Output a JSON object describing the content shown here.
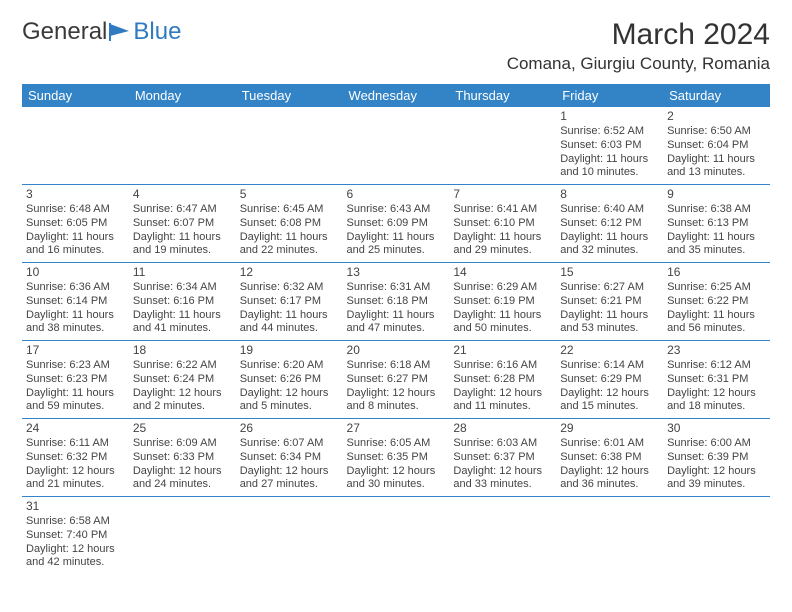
{
  "logo": {
    "text1": "General",
    "text2": "Blue"
  },
  "title": "March 2024",
  "location": "Comana, Giurgiu County, Romania",
  "colors": {
    "header_bg": "#3383c7",
    "header_text": "#ffffff",
    "cell_border": "#3383c7",
    "logo_blue": "#2f7ac0",
    "text": "#333333"
  },
  "day_headers": [
    "Sunday",
    "Monday",
    "Tuesday",
    "Wednesday",
    "Thursday",
    "Friday",
    "Saturday"
  ],
  "weeks": [
    [
      null,
      null,
      null,
      null,
      null,
      {
        "n": "1",
        "sr": "Sunrise: 6:52 AM",
        "ss": "Sunset: 6:03 PM",
        "d1": "Daylight: 11 hours",
        "d2": "and 10 minutes."
      },
      {
        "n": "2",
        "sr": "Sunrise: 6:50 AM",
        "ss": "Sunset: 6:04 PM",
        "d1": "Daylight: 11 hours",
        "d2": "and 13 minutes."
      }
    ],
    [
      {
        "n": "3",
        "sr": "Sunrise: 6:48 AM",
        "ss": "Sunset: 6:05 PM",
        "d1": "Daylight: 11 hours",
        "d2": "and 16 minutes."
      },
      {
        "n": "4",
        "sr": "Sunrise: 6:47 AM",
        "ss": "Sunset: 6:07 PM",
        "d1": "Daylight: 11 hours",
        "d2": "and 19 minutes."
      },
      {
        "n": "5",
        "sr": "Sunrise: 6:45 AM",
        "ss": "Sunset: 6:08 PM",
        "d1": "Daylight: 11 hours",
        "d2": "and 22 minutes."
      },
      {
        "n": "6",
        "sr": "Sunrise: 6:43 AM",
        "ss": "Sunset: 6:09 PM",
        "d1": "Daylight: 11 hours",
        "d2": "and 25 minutes."
      },
      {
        "n": "7",
        "sr": "Sunrise: 6:41 AM",
        "ss": "Sunset: 6:10 PM",
        "d1": "Daylight: 11 hours",
        "d2": "and 29 minutes."
      },
      {
        "n": "8",
        "sr": "Sunrise: 6:40 AM",
        "ss": "Sunset: 6:12 PM",
        "d1": "Daylight: 11 hours",
        "d2": "and 32 minutes."
      },
      {
        "n": "9",
        "sr": "Sunrise: 6:38 AM",
        "ss": "Sunset: 6:13 PM",
        "d1": "Daylight: 11 hours",
        "d2": "and 35 minutes."
      }
    ],
    [
      {
        "n": "10",
        "sr": "Sunrise: 6:36 AM",
        "ss": "Sunset: 6:14 PM",
        "d1": "Daylight: 11 hours",
        "d2": "and 38 minutes."
      },
      {
        "n": "11",
        "sr": "Sunrise: 6:34 AM",
        "ss": "Sunset: 6:16 PM",
        "d1": "Daylight: 11 hours",
        "d2": "and 41 minutes."
      },
      {
        "n": "12",
        "sr": "Sunrise: 6:32 AM",
        "ss": "Sunset: 6:17 PM",
        "d1": "Daylight: 11 hours",
        "d2": "and 44 minutes."
      },
      {
        "n": "13",
        "sr": "Sunrise: 6:31 AM",
        "ss": "Sunset: 6:18 PM",
        "d1": "Daylight: 11 hours",
        "d2": "and 47 minutes."
      },
      {
        "n": "14",
        "sr": "Sunrise: 6:29 AM",
        "ss": "Sunset: 6:19 PM",
        "d1": "Daylight: 11 hours",
        "d2": "and 50 minutes."
      },
      {
        "n": "15",
        "sr": "Sunrise: 6:27 AM",
        "ss": "Sunset: 6:21 PM",
        "d1": "Daylight: 11 hours",
        "d2": "and 53 minutes."
      },
      {
        "n": "16",
        "sr": "Sunrise: 6:25 AM",
        "ss": "Sunset: 6:22 PM",
        "d1": "Daylight: 11 hours",
        "d2": "and 56 minutes."
      }
    ],
    [
      {
        "n": "17",
        "sr": "Sunrise: 6:23 AM",
        "ss": "Sunset: 6:23 PM",
        "d1": "Daylight: 11 hours",
        "d2": "and 59 minutes."
      },
      {
        "n": "18",
        "sr": "Sunrise: 6:22 AM",
        "ss": "Sunset: 6:24 PM",
        "d1": "Daylight: 12 hours",
        "d2": "and 2 minutes."
      },
      {
        "n": "19",
        "sr": "Sunrise: 6:20 AM",
        "ss": "Sunset: 6:26 PM",
        "d1": "Daylight: 12 hours",
        "d2": "and 5 minutes."
      },
      {
        "n": "20",
        "sr": "Sunrise: 6:18 AM",
        "ss": "Sunset: 6:27 PM",
        "d1": "Daylight: 12 hours",
        "d2": "and 8 minutes."
      },
      {
        "n": "21",
        "sr": "Sunrise: 6:16 AM",
        "ss": "Sunset: 6:28 PM",
        "d1": "Daylight: 12 hours",
        "d2": "and 11 minutes."
      },
      {
        "n": "22",
        "sr": "Sunrise: 6:14 AM",
        "ss": "Sunset: 6:29 PM",
        "d1": "Daylight: 12 hours",
        "d2": "and 15 minutes."
      },
      {
        "n": "23",
        "sr": "Sunrise: 6:12 AM",
        "ss": "Sunset: 6:31 PM",
        "d1": "Daylight: 12 hours",
        "d2": "and 18 minutes."
      }
    ],
    [
      {
        "n": "24",
        "sr": "Sunrise: 6:11 AM",
        "ss": "Sunset: 6:32 PM",
        "d1": "Daylight: 12 hours",
        "d2": "and 21 minutes."
      },
      {
        "n": "25",
        "sr": "Sunrise: 6:09 AM",
        "ss": "Sunset: 6:33 PM",
        "d1": "Daylight: 12 hours",
        "d2": "and 24 minutes."
      },
      {
        "n": "26",
        "sr": "Sunrise: 6:07 AM",
        "ss": "Sunset: 6:34 PM",
        "d1": "Daylight: 12 hours",
        "d2": "and 27 minutes."
      },
      {
        "n": "27",
        "sr": "Sunrise: 6:05 AM",
        "ss": "Sunset: 6:35 PM",
        "d1": "Daylight: 12 hours",
        "d2": "and 30 minutes."
      },
      {
        "n": "28",
        "sr": "Sunrise: 6:03 AM",
        "ss": "Sunset: 6:37 PM",
        "d1": "Daylight: 12 hours",
        "d2": "and 33 minutes."
      },
      {
        "n": "29",
        "sr": "Sunrise: 6:01 AM",
        "ss": "Sunset: 6:38 PM",
        "d1": "Daylight: 12 hours",
        "d2": "and 36 minutes."
      },
      {
        "n": "30",
        "sr": "Sunrise: 6:00 AM",
        "ss": "Sunset: 6:39 PM",
        "d1": "Daylight: 12 hours",
        "d2": "and 39 minutes."
      }
    ],
    [
      {
        "n": "31",
        "sr": "Sunrise: 6:58 AM",
        "ss": "Sunset: 7:40 PM",
        "d1": "Daylight: 12 hours",
        "d2": "and 42 minutes."
      },
      null,
      null,
      null,
      null,
      null,
      null
    ]
  ]
}
